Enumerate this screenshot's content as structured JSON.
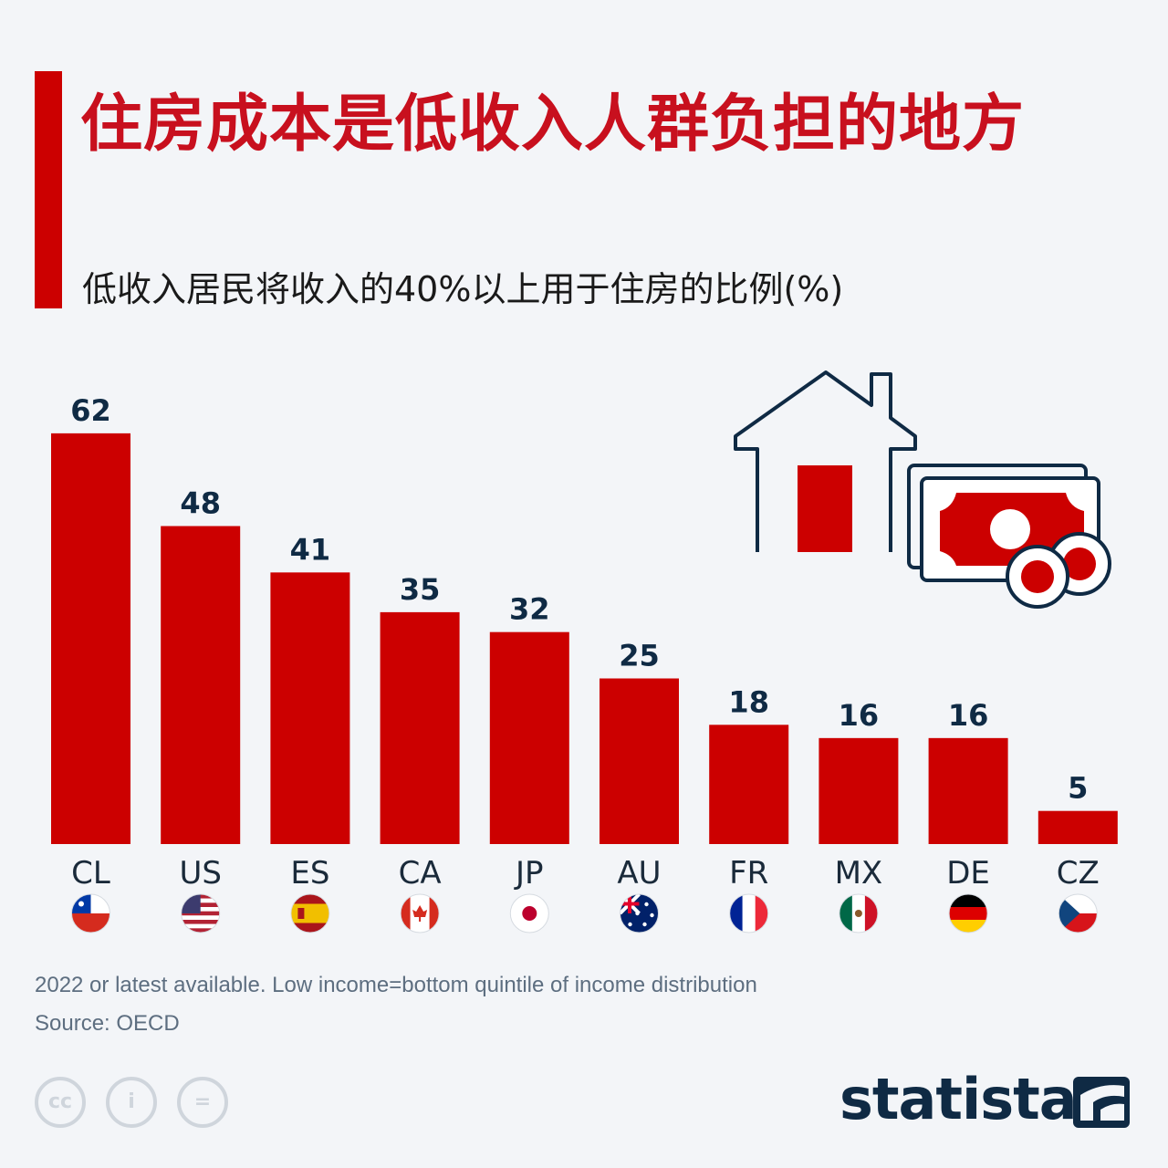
{
  "header": {
    "title": "住房成本是低收入人群负担的地方",
    "subtitle": "低收入居民将收入的40%以上用于住房的比例(%)"
  },
  "footer": {
    "note": "2022 or latest available. Low income=bottom quintile of income distribution",
    "source": "Source: OECD",
    "brand": "statista",
    "license_icons": [
      "cc-icon",
      "attribution-icon",
      "no-derivatives-icon"
    ],
    "license_glyphs": [
      "cc",
      "i",
      "="
    ]
  },
  "colors": {
    "bar": "#cc0000",
    "accent": "#c8101e",
    "value_label": "#0f2a44",
    "category_label": "#1a2a3a"
  },
  "chart_data": {
    "type": "bar",
    "title": "住房成本是低收入人群负担的地方",
    "subtitle": "低收入居民将收入的40%以上用于住房的比例(%)",
    "categories": [
      "CL",
      "US",
      "ES",
      "CA",
      "JP",
      "AU",
      "FR",
      "MX",
      "DE",
      "CZ"
    ],
    "values": [
      62,
      48,
      41,
      35,
      32,
      25,
      18,
      16,
      16,
      5
    ],
    "flags": [
      "chile-flag-icon",
      "usa-flag-icon",
      "spain-flag-icon",
      "canada-flag-icon",
      "japan-flag-icon",
      "australia-flag-icon",
      "france-flag-icon",
      "mexico-flag-icon",
      "germany-flag-icon",
      "czech-flag-icon"
    ],
    "ylim": [
      0,
      62
    ],
    "grid": false,
    "xlabel": "",
    "ylabel": ""
  },
  "illustration": {
    "house_icon": "house-icon",
    "money_icon": "banknote-coins-icon"
  }
}
